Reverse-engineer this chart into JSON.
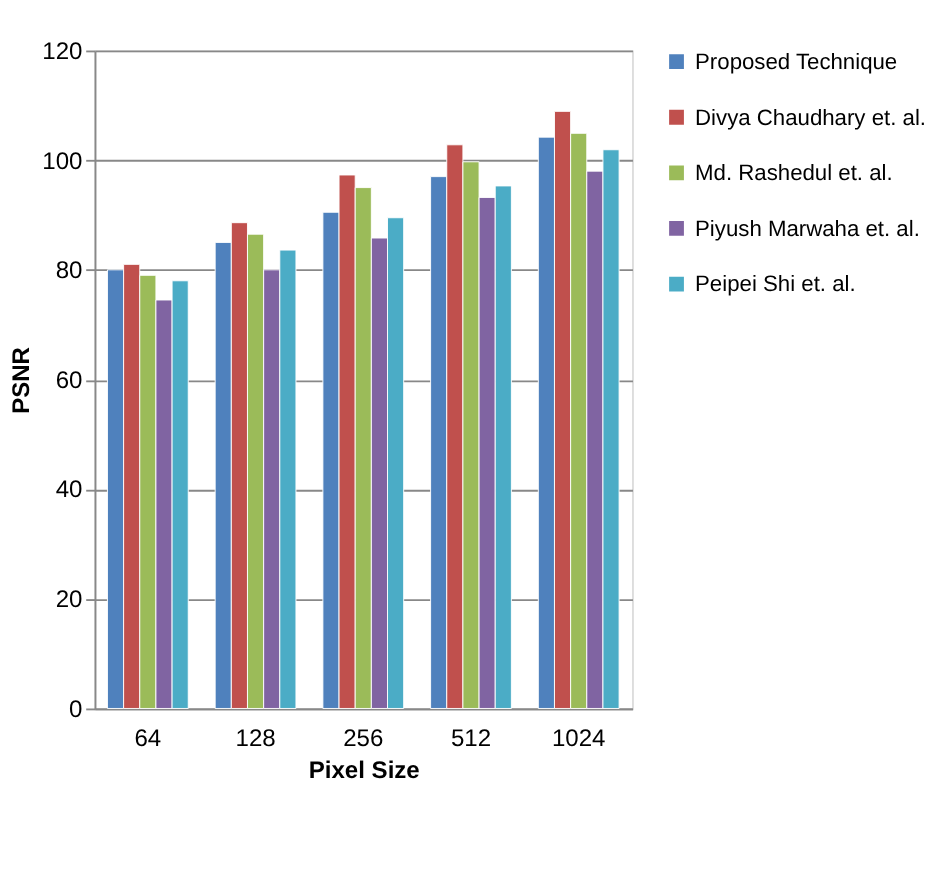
{
  "chart_data": {
    "type": "bar",
    "xlabel": "Pixel Size",
    "ylabel": "PSNR",
    "categories": [
      "64",
      "128",
      "256",
      "512",
      "1024"
    ],
    "series": [
      {
        "name": "Proposed Technique",
        "color": "#4f81bd",
        "values": [
          80,
          85,
          90.5,
          97,
          104.2
        ]
      },
      {
        "name": "Divya Chaudhary et. al.",
        "color": "#c0504d",
        "values": [
          81,
          88.6,
          97.3,
          102.8,
          108.9
        ]
      },
      {
        "name": "Md. Rashedul et. al.",
        "color": "#9bbb59",
        "values": [
          79,
          86.5,
          95,
          99.7,
          104.9
        ]
      },
      {
        "name": "Piyush Marwaha et. al.",
        "color": "#8064a2",
        "values": [
          74.5,
          80,
          85.8,
          93.2,
          98
        ]
      },
      {
        "name": "Peipei Shi et. al.",
        "color": "#4bacc6",
        "values": [
          78,
          83.6,
          89.5,
          95.3,
          101.9
        ]
      }
    ],
    "ylim": [
      0,
      120
    ],
    "yticks": [
      0,
      20,
      40,
      60,
      80,
      100,
      120
    ],
    "grid": "y",
    "legend": "right"
  }
}
